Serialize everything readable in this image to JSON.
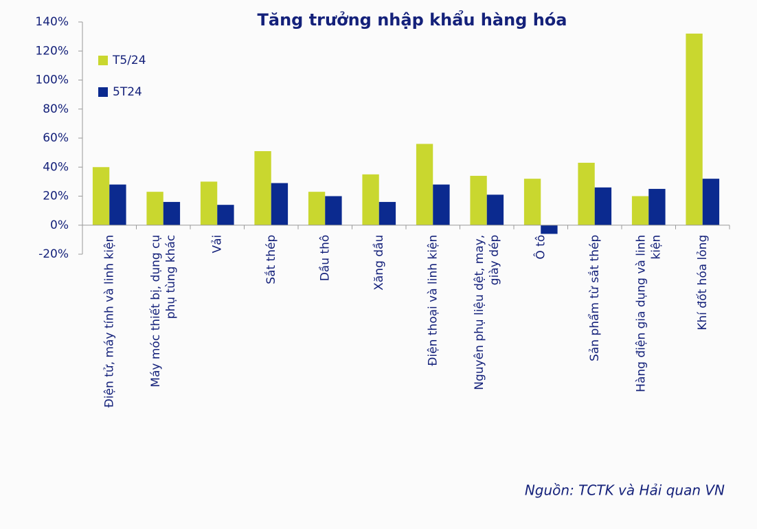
{
  "chart_data": {
    "type": "bar",
    "title": "Tăng trưởng nhập khẩu hàng hóa",
    "categories": [
      [
        "Điện tử, máy tính và linh kiện"
      ],
      [
        "Máy móc thiết bị, dụng cụ",
        "phụ tùng khác"
      ],
      [
        "Vải"
      ],
      [
        "Sắt thép"
      ],
      [
        "Dầu thô"
      ],
      [
        "Xăng dầu"
      ],
      [
        "Điện thoại và linh kiện"
      ],
      [
        "Nguyên phụ liệu dệt, may,",
        "giày dép"
      ],
      [
        "Ô tô"
      ],
      [
        "Sản phẩm từ sắt thép"
      ],
      [
        "Hàng điện gia dụng và linh",
        "kiện"
      ],
      [
        "Khí đốt hóa lỏng"
      ]
    ],
    "series": [
      {
        "name": "T5/24",
        "color": "#c9d72f",
        "values": [
          40,
          23,
          30,
          51,
          23,
          35,
          56,
          34,
          32,
          43,
          20,
          132
        ]
      },
      {
        "name": "5T24",
        "color": "#0b2a8f",
        "values": [
          28,
          16,
          14,
          29,
          20,
          16,
          28,
          21,
          -6,
          26,
          25,
          32
        ]
      }
    ],
    "ylim": [
      -20,
      140
    ],
    "yticks": [
      {
        "value": -20,
        "label": "-20%"
      },
      {
        "value": 0,
        "label": "0%"
      },
      {
        "value": 20,
        "label": "20%"
      },
      {
        "value": 40,
        "label": "40%"
      },
      {
        "value": 60,
        "label": "60%"
      },
      {
        "value": 80,
        "label": "80%"
      },
      {
        "value": 100,
        "label": "100%"
      },
      {
        "value": 120,
        "label": "120%"
      },
      {
        "value": 140,
        "label": "140%"
      }
    ],
    "grid": false,
    "legend": "top-left",
    "source": "Nguồn: TCTK và Hải quan VN"
  }
}
